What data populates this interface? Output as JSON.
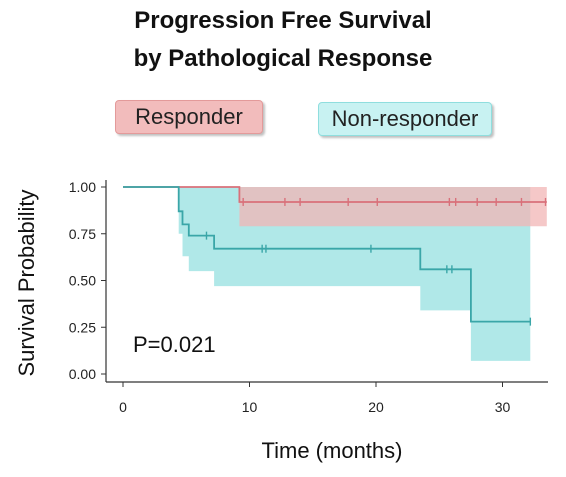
{
  "chart_data": {
    "type": "line",
    "subtype": "kaplan-meier-step",
    "title_line1": "Progression Free Survival",
    "title_line2": "by Pathological  Response",
    "xlabel": "Time (months)",
    "ylabel": "Survival Probability",
    "xlim": [
      -1.5,
      34
    ],
    "ylim": [
      -0.02,
      1.04
    ],
    "xticks": [
      0,
      10,
      20,
      30
    ],
    "yticks": [
      0.0,
      0.25,
      0.5,
      0.75,
      1.0
    ],
    "ytick_labels": [
      "0.00",
      "0.25",
      "0.50",
      "0.75",
      "1.00"
    ],
    "legend_placement": "top",
    "annotation": "P=0.021",
    "series": [
      {
        "name": "Responder",
        "color": "#d9707a",
        "band_color": "#f2b5b5",
        "steps": [
          [
            0,
            1.0
          ],
          [
            9.2,
            1.0
          ],
          [
            9.2,
            0.92
          ],
          [
            33.5,
            0.92
          ]
        ],
        "ci_lower": [
          [
            0,
            1.0
          ],
          [
            9.2,
            1.0
          ],
          [
            9.2,
            0.79
          ],
          [
            33.5,
            0.79
          ]
        ],
        "ci_upper": [
          [
            0,
            1.0
          ],
          [
            33.5,
            1.0
          ]
        ],
        "censor_x": [
          9.5,
          12.8,
          14.0,
          17.8,
          20.1,
          25.8,
          26.3,
          28.0,
          29.5,
          31.5,
          33.4
        ],
        "censor_y": 0.92
      },
      {
        "name": "Non-responder",
        "color": "#3aa6a8",
        "band_color": "#8fdede",
        "steps": [
          [
            0,
            1.0
          ],
          [
            4.4,
            1.0
          ],
          [
            4.4,
            0.87
          ],
          [
            4.7,
            0.87
          ],
          [
            4.7,
            0.8
          ],
          [
            5.2,
            0.8
          ],
          [
            5.2,
            0.74
          ],
          [
            7.2,
            0.74
          ],
          [
            7.2,
            0.67
          ],
          [
            23.5,
            0.67
          ],
          [
            23.5,
            0.56
          ],
          [
            27.5,
            0.56
          ],
          [
            27.5,
            0.28
          ],
          [
            32.2,
            0.28
          ]
        ],
        "ci_lower": [
          [
            0,
            1.0
          ],
          [
            4.4,
            1.0
          ],
          [
            4.4,
            0.75
          ],
          [
            4.7,
            0.75
          ],
          [
            4.7,
            0.63
          ],
          [
            5.2,
            0.63
          ],
          [
            5.2,
            0.55
          ],
          [
            7.2,
            0.55
          ],
          [
            7.2,
            0.47
          ],
          [
            23.5,
            0.47
          ],
          [
            23.5,
            0.34
          ],
          [
            27.5,
            0.34
          ],
          [
            27.5,
            0.07
          ],
          [
            32.2,
            0.07
          ]
        ],
        "ci_upper": [
          [
            0,
            1.0
          ],
          [
            32.2,
            1.0
          ]
        ],
        "censor_x": [
          6.6,
          11.0,
          11.3,
          19.6,
          25.6,
          26.0,
          32.2
        ],
        "censor_y_list": [
          0.74,
          0.67,
          0.67,
          0.67,
          0.56,
          0.56,
          0.28
        ]
      }
    ]
  },
  "legend": {
    "responder": "Responder",
    "non_responder": "Non-responder"
  }
}
